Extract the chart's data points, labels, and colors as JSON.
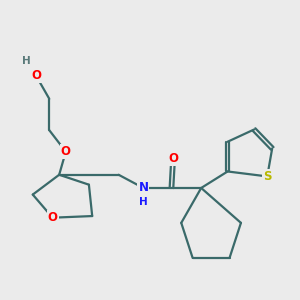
{
  "background_color": "#ebebeb",
  "bond_color": "#3a6a6a",
  "atom_colors": {
    "O": "#ff0000",
    "N": "#1a1aff",
    "S": "#b8b800",
    "H": "#5a7a7a",
    "C": "#3a6a6a"
  },
  "figsize": [
    3.0,
    3.0
  ],
  "dpi": 100,
  "lw": 1.6,
  "fs": 8.5
}
